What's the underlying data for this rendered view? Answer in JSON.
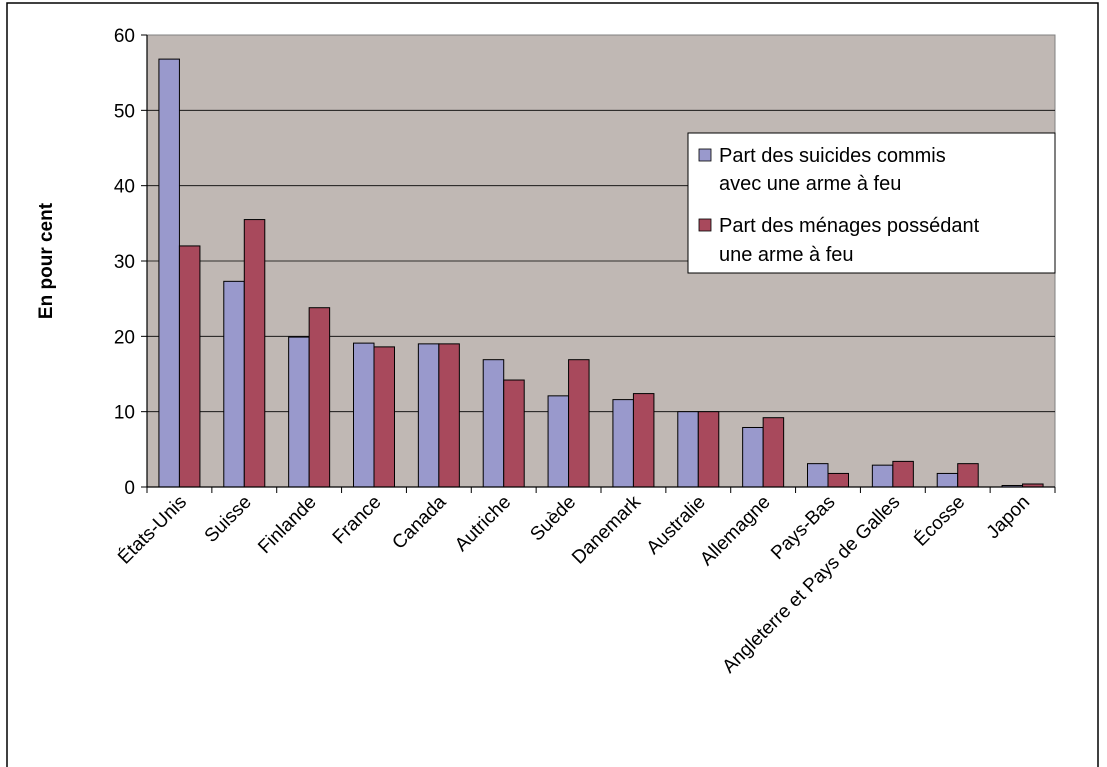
{
  "chart_data": {
    "type": "bar",
    "title": "",
    "ylabel": "En pour cent",
    "xlabel": "",
    "ylim": [
      0,
      60
    ],
    "yticks": [
      "0",
      "10",
      "20",
      "30",
      "40",
      "50",
      "60"
    ],
    "categories": [
      "États-Unis",
      "Suisse",
      "Finlande",
      "France",
      "Canada",
      "Autriche",
      "Suède",
      "Danemark",
      "Australie",
      "Allemagne",
      "Pays-Bas",
      "Angleterre et Pays de Galles",
      "Écosse",
      "Japon"
    ],
    "series": [
      {
        "name_lines": [
          "Part des suicides commis",
          "avec une arme à feu"
        ],
        "color": "#9999cc",
        "values": [
          56.8,
          27.3,
          19.9,
          19.1,
          19.0,
          16.9,
          12.1,
          11.6,
          10.0,
          7.9,
          3.1,
          2.9,
          1.8,
          0.2
        ]
      },
      {
        "name_lines": [
          "Part des ménages possédant",
          "une arme à feu"
        ],
        "color": "#a8495c",
        "values": [
          32.0,
          35.5,
          23.8,
          18.6,
          19.0,
          14.2,
          16.9,
          12.4,
          10.0,
          9.2,
          1.8,
          3.4,
          3.1,
          0.4
        ]
      }
    ],
    "plot_background": "#c0b8b4",
    "gridlines": true,
    "legend_position": "top-right"
  }
}
